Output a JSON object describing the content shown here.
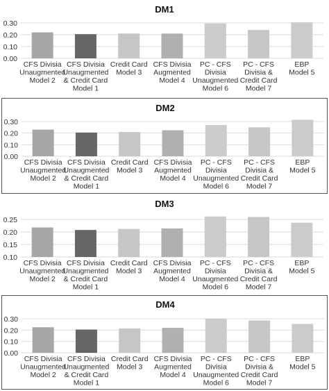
{
  "chart_data": [
    {
      "type": "bar",
      "title": "DM1",
      "categories": [
        [
          "CFS Divisia",
          "Unaugmented",
          "Model 2"
        ],
        [
          "CFS Divisia",
          "Unaugmented",
          "& Credit Card",
          "Model 1"
        ],
        [
          "Credit Card",
          "Model 3"
        ],
        [
          "CFS Divisia",
          "Augmented",
          "Model 4"
        ],
        [
          "PC - CFS",
          "Divisia",
          "Unaugmented",
          "Model 6"
        ],
        [
          "PC - CFS",
          "Divisia &",
          "Credit Card",
          "Model 7"
        ],
        [
          "EBP",
          "Model 5"
        ]
      ],
      "values": [
        0.22,
        0.205,
        0.21,
        0.21,
        0.295,
        0.24,
        0.305
      ],
      "yticks": [
        "0.00",
        "0.10",
        "0.20",
        "0.30"
      ],
      "ylim": [
        0,
        0.3
      ],
      "grid": true
    },
    {
      "type": "bar",
      "title": "DM2",
      "categories": [
        [
          "CFS Divisia",
          "Unaugmented",
          "Model 2"
        ],
        [
          "CFS Divisia",
          "Unaugmented",
          "& Credit Card",
          "Model 1"
        ],
        [
          "Credit Card",
          "Model 3"
        ],
        [
          "CFS Divisia",
          "Augmented",
          "Model 4"
        ],
        [
          "PC - CFS",
          "Divisia",
          "Unaugmented",
          "Model 6"
        ],
        [
          "PC - CFS",
          "Divisia &",
          "Credit Card",
          "Model 7"
        ],
        [
          "EBP",
          "Model 5"
        ]
      ],
      "values": [
        0.23,
        0.205,
        0.21,
        0.225,
        0.27,
        0.25,
        0.315
      ],
      "yticks": [
        "0.00",
        "0.10",
        "0.20",
        "0.30"
      ],
      "ylim": [
        0,
        0.3
      ],
      "grid": true
    },
    {
      "type": "bar",
      "title": "DM3",
      "categories": [
        [
          "CFS Divisia",
          "Unaugmented",
          "Model 2"
        ],
        [
          "CFS Divisia",
          "Unaugmented",
          "& Credit Card",
          "Model 1"
        ],
        [
          "Credit Card",
          "Model 3"
        ],
        [
          "CFS Divisia",
          "Augmented",
          "Model 4"
        ],
        [
          "PC - CFS",
          "Divisia",
          "Unaugmented",
          "Model 6"
        ],
        [
          "PC - CFS",
          "Divisia &",
          "Credit Card",
          "Model 7"
        ],
        [
          "EBP",
          "Model 5"
        ]
      ],
      "values": [
        0.218,
        0.208,
        0.212,
        0.214,
        0.267,
        0.26,
        0.237
      ],
      "yticks": [
        "0.10",
        "0.15",
        "0.20",
        "0.25"
      ],
      "ylim": [
        0.1,
        0.25
      ],
      "grid": true
    },
    {
      "type": "bar",
      "title": "DM4",
      "categories": [
        [
          "CFS Divisia",
          "Unaugmented",
          "Model 2"
        ],
        [
          "CFS Divisia",
          "Unaugmented",
          "& Credit Card",
          "Model 1"
        ],
        [
          "Credit Card",
          "Model 3"
        ],
        [
          "CFS Divisia",
          "Augmented",
          "Model 4"
        ],
        [
          "PC - CFS",
          "Divisia",
          "Unaugmented",
          "Model 6"
        ],
        [
          "PC - CFS",
          "Divisia &",
          "Credit Card",
          "Model 7"
        ],
        [
          "EBP",
          "Model 5"
        ]
      ],
      "values": [
        0.225,
        0.205,
        0.215,
        0.22,
        0.3,
        0.285,
        0.255
      ],
      "yticks": [
        "0.00",
        "0.10",
        "0.20",
        "0.30"
      ],
      "ylim": [
        0,
        0.3
      ],
      "grid": true
    }
  ],
  "colors": {
    "bars": [
      "#a6a6a6",
      "#666666",
      "#c6c6c6",
      "#b0b0b0",
      "#cbcbcb",
      "#c6c6c6",
      "#cbcbcb"
    ],
    "grid": "#d9d9d9",
    "frame": "#555555"
  }
}
